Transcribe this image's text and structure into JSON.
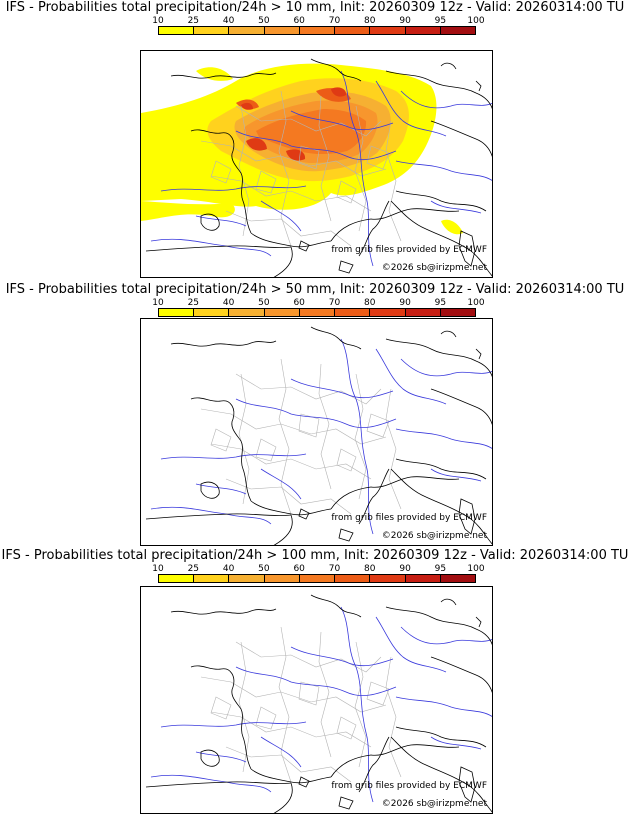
{
  "legend": {
    "ticks": [
      "10",
      "25",
      "40",
      "50",
      "60",
      "70",
      "80",
      "90",
      "95",
      "100"
    ],
    "colors": [
      "#fefe00",
      "#ffd21e",
      "#f6b032",
      "#f7962d",
      "#f47921",
      "#ec5c17",
      "#df3a14",
      "#c61e13",
      "#a20e11",
      "#7c0a0a"
    ]
  },
  "credits": {
    "source": "from grib files provided by ECMWF",
    "copyright": "©2026 sb@irizpme.net"
  },
  "panels": [
    {
      "title": "IFS - Probabilities total precipitation/24h > 10 mm, Init: 20260309 12z - Valid: 20260314:00 TU",
      "has_field": true
    },
    {
      "title": "IFS - Probabilities total precipitation/24h > 50 mm, Init: 20260309 12z - Valid: 20260314:00 TU",
      "has_field": false
    },
    {
      "title": "IFS - Probabilities total precipitation/24h > 100 mm, Init: 20260309 12z - Valid: 20260314:00 TU",
      "has_field": false
    }
  ]
}
